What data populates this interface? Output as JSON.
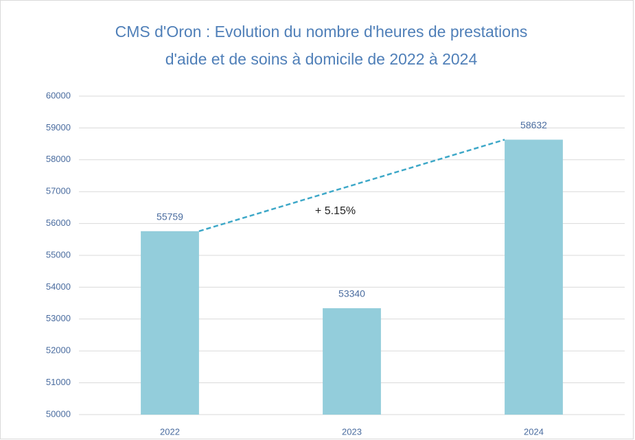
{
  "chart_data": {
    "type": "bar",
    "title": [
      "CMS d'Oron  : Evolution du nombre d'heures de prestations",
      "d'aide et de soins à domicile de 2022 à 2024"
    ],
    "categories": [
      "2022",
      "2023",
      "2024"
    ],
    "values": [
      55759,
      53340,
      58632
    ],
    "color": "#93cddb",
    "ylim": [
      50000,
      60000
    ],
    "yticks": [
      50000,
      51000,
      52000,
      53000,
      54000,
      55000,
      56000,
      57000,
      58000,
      59000,
      60000
    ],
    "grid": true,
    "annotation": "+ 5.15%"
  }
}
